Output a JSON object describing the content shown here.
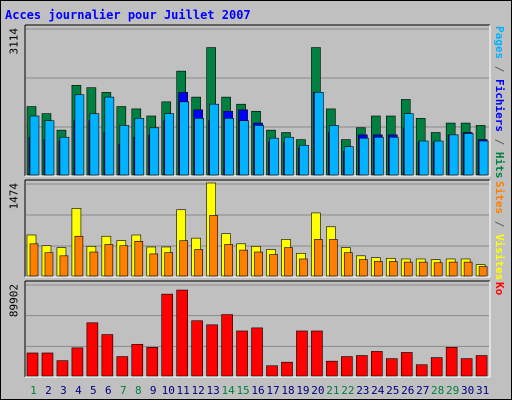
{
  "chart_data": [
    {
      "type": "bar",
      "title": "Acces journalier pour Juillet 2007",
      "y_max_label": "3114",
      "ylim": [
        0,
        3114
      ],
      "ylabel_parts": [
        {
          "text": "Pages",
          "color": "#00b2ff"
        },
        {
          "text": " / ",
          "color": "#606060"
        },
        {
          "text": "Fichiers",
          "color": "#0000ff"
        },
        {
          "text": " / ",
          "color": "#606060"
        },
        {
          "text": "Hits",
          "color": "#008040"
        }
      ],
      "categories": [
        "1",
        "2",
        "3",
        "4",
        "5",
        "6",
        "7",
        "8",
        "9",
        "10",
        "11",
        "12",
        "13",
        "14",
        "15",
        "16",
        "17",
        "18",
        "19",
        "20",
        "21",
        "22",
        "23",
        "24",
        "25",
        "26",
        "27",
        "28",
        "29",
        "30",
        "31"
      ],
      "series": [
        {
          "name": "Hits",
          "color": "#008040",
          "values": [
            1450,
            1300,
            950,
            1900,
            1850,
            1750,
            1450,
            1400,
            1250,
            1550,
            2200,
            1650,
            2700,
            1650,
            1500,
            1350,
            950,
            900,
            750,
            2700,
            1400,
            750,
            1000,
            1250,
            1250,
            1600,
            1200,
            900,
            1100,
            1100,
            1050
          ]
        },
        {
          "name": "Fichiers",
          "color": "#0000ff",
          "values": [
            800,
            750,
            720,
            1150,
            1150,
            900,
            650,
            800,
            850,
            1150,
            1750,
            1380,
            1150,
            1350,
            1380,
            1100,
            700,
            700,
            570,
            1750,
            900,
            500,
            850,
            850,
            850,
            1000,
            700,
            700,
            850,
            900,
            750
          ]
        },
        {
          "name": "Pages",
          "color": "#00b2ff",
          "values": [
            1250,
            1150,
            800,
            1700,
            1300,
            1650,
            1050,
            1200,
            1000,
            1300,
            1550,
            1200,
            1500,
            1200,
            1150,
            1050,
            780,
            800,
            630,
            1750,
            1050,
            600,
            780,
            800,
            800,
            1300,
            720,
            720,
            850,
            880,
            720
          ]
        }
      ]
    },
    {
      "type": "bar",
      "y_max_label": "1474",
      "ylim": [
        0,
        1474
      ],
      "ylabel_parts": [
        {
          "text": "Sites",
          "color": "#ff8000"
        },
        {
          "text": " / ",
          "color": "#606060"
        },
        {
          "text": "Visites",
          "color": "#ffff00"
        }
      ],
      "series": [
        {
          "name": "Visites",
          "color": "#ffff00",
          "values": [
            650,
            480,
            450,
            1070,
            470,
            630,
            560,
            650,
            460,
            460,
            1050,
            600,
            1474,
            670,
            510,
            470,
            420,
            580,
            360,
            1000,
            780,
            450,
            320,
            290,
            280,
            270,
            270,
            260,
            270,
            270,
            180
          ]
        },
        {
          "name": "Sites",
          "color": "#ff8000",
          "values": [
            510,
            370,
            320,
            630,
            380,
            500,
            480,
            550,
            350,
            370,
            560,
            420,
            960,
            500,
            410,
            380,
            340,
            450,
            270,
            580,
            580,
            370,
            260,
            230,
            230,
            220,
            220,
            210,
            220,
            220,
            150
          ]
        }
      ]
    },
    {
      "type": "bar",
      "y_max_label": "89902",
      "ylim": [
        0,
        89902
      ],
      "ylabel_parts": [
        {
          "text": "Ko",
          "color": "#ff0000"
        }
      ],
      "series": [
        {
          "name": "Ko",
          "color": "#ff0000",
          "values": [
            22500,
            22500,
            15000,
            27500,
            52000,
            40500,
            19000,
            31000,
            28000,
            80000,
            84000,
            54000,
            50000,
            60000,
            44000,
            47000,
            10000,
            13500,
            44000,
            44000,
            14500,
            19000,
            20000,
            24000,
            17000,
            23000,
            11000,
            18000,
            28000,
            17000,
            20000
          ]
        }
      ]
    }
  ],
  "weekend_days": [
    "1",
    "7",
    "8",
    "14",
    "15",
    "21",
    "22",
    "28",
    "29"
  ],
  "colors": {
    "background": "#c0c0c0",
    "title": "#0000ff",
    "normal_day": "#000080",
    "weekend_day": "#008040",
    "bar_edge_dark": "#000000"
  }
}
